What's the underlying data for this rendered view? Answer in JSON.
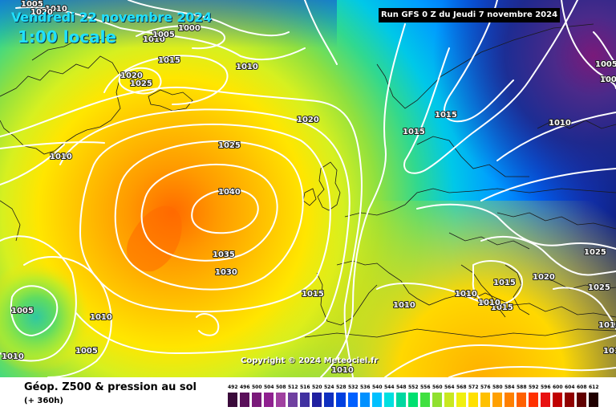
{
  "header": {
    "date": "Vendredi 22 novembre 2024",
    "time": "1:00 locale",
    "run": "Run GFS 0 Z du Jeudi 7 novembre 2024"
  },
  "copyright": "Copyright © 2024 Meteociel.fr",
  "footer": {
    "title": "Géop. Z500 & pression au sol",
    "subtitle": "(+ 360h)"
  },
  "scale": {
    "labels": [
      "492",
      "496",
      "500",
      "504",
      "508",
      "512",
      "516",
      "520",
      "524",
      "528",
      "532",
      "536",
      "540",
      "544",
      "548",
      "552",
      "556",
      "560",
      "564",
      "568",
      "572",
      "576",
      "580",
      "584",
      "588",
      "592",
      "596",
      "600",
      "604",
      "608",
      "612"
    ],
    "colors": [
      "#3a0a3a",
      "#5a105a",
      "#7a1a7a",
      "#902090",
      "#a040a0",
      "#7040a0",
      "#4030a0",
      "#2020a0",
      "#1030c0",
      "#0040e0",
      "#0060ff",
      "#0090ff",
      "#00c0ff",
      "#00e0e0",
      "#00d8a0",
      "#00e070",
      "#40e040",
      "#90e030",
      "#c8e820",
      "#f0f010",
      "#ffe000",
      "#ffc000",
      "#ffa000",
      "#ff8000",
      "#ff6000",
      "#ff3000",
      "#e81010",
      "#c00000",
      "#900000",
      "#600000",
      "#200000"
    ]
  },
  "isobars": [
    {
      "label": "1040"
    },
    {
      "label": "1035"
    },
    {
      "label": "1030"
    },
    {
      "label": "1025"
    },
    {
      "label": "1020"
    },
    {
      "label": "1025"
    },
    {
      "label": "1020"
    },
    {
      "label": "1015"
    },
    {
      "label": "1015"
    },
    {
      "label": "1015"
    },
    {
      "label": "1010"
    },
    {
      "label": "1010"
    },
    {
      "label": "1010"
    },
    {
      "label": "1010"
    },
    {
      "label": "1010"
    },
    {
      "label": "1010"
    },
    {
      "label": "1005"
    },
    {
      "label": "1005"
    },
    {
      "label": "1005"
    },
    {
      "label": "1000"
    },
    {
      "label": "1010"
    },
    {
      "label": "1010"
    },
    {
      "label": "1015"
    },
    {
      "label": "1015"
    },
    {
      "label": "1020"
    },
    {
      "label": "1025"
    },
    {
      "label": "1025"
    },
    {
      "label": "1010"
    },
    {
      "label": "1015"
    },
    {
      "label": "1005"
    },
    {
      "label": "1010"
    },
    {
      "label": "1000"
    },
    {
      "label": "1005"
    },
    {
      "label": "1010"
    },
    {
      "label": "1015"
    },
    {
      "label": "1015"
    },
    {
      "label": "1020"
    }
  ]
}
